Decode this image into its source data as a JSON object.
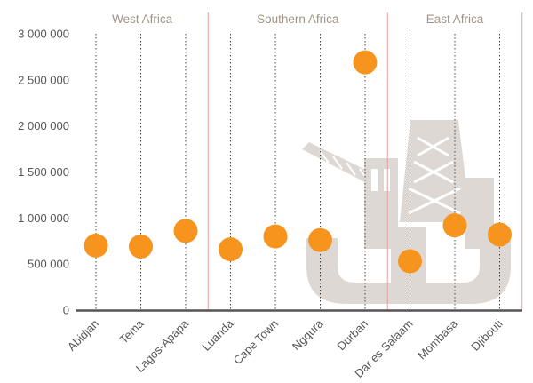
{
  "chart_data": {
    "type": "scatter",
    "title": "",
    "xlabel": "",
    "ylabel": "",
    "ylim": [
      0,
      3000000
    ],
    "yticks": [
      0,
      500000,
      1000000,
      1500000,
      2000000,
      2500000,
      3000000
    ],
    "ytick_labels": [
      "0",
      "500 000",
      "1 000 000",
      "1 500 000",
      "2 000 000",
      "2 500 000",
      "3 000 000"
    ],
    "categories": [
      "Abidjan",
      "Tema",
      "Lagos-Apapa",
      "Luanda",
      "Cape Town",
      "Ngqura",
      "Durban",
      "Dar es Salaam",
      "Mombasa",
      "Djibouti"
    ],
    "values": [
      700000,
      690000,
      860000,
      660000,
      800000,
      760000,
      2690000,
      530000,
      920000,
      820000
    ],
    "groups": [
      {
        "name": "West Africa",
        "start": 0,
        "end": 2
      },
      {
        "name": "Southern Africa",
        "start": 3,
        "end": 6
      },
      {
        "name": "East Africa",
        "start": 7,
        "end": 9
      }
    ],
    "grid": "vertical dotted per category",
    "colors": {
      "marker": "#f7941d",
      "separator": "#e8a0a0",
      "axis": "#555555",
      "watermark": "#ddd8d4"
    }
  }
}
